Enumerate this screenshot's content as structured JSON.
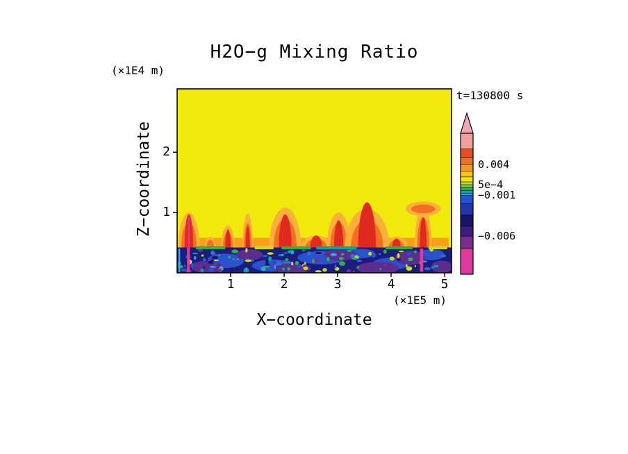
{
  "chart_data": {
    "type": "heatmap",
    "title": "H2O−g Mixing Ratio",
    "time_annotation": "t=130800 s",
    "x_axis": {
      "label": "X−coordinate",
      "units": "(×1E5 m)",
      "ticks": [
        1,
        2,
        3,
        4,
        5
      ],
      "range": [
        0,
        5.13
      ]
    },
    "z_axis": {
      "label": "Z−coordinate",
      "units": "(×1E4 m)",
      "ticks": [
        1,
        2
      ],
      "range": [
        0,
        3.05
      ]
    },
    "colorbar": {
      "orientation": "vertical",
      "over_range_arrow": true,
      "arrow_color": "#F2A8B6",
      "segments": [
        {
          "color": "#F2A09C",
          "span": 0.11
        },
        {
          "color": "#EC4B24",
          "span": 0.06
        },
        {
          "color": "#F3701E",
          "span": 0.05
        },
        {
          "color": "#F8991C",
          "span": 0.05
        },
        {
          "color": "#FDC60E",
          "span": 0.04
        },
        {
          "color": "#F2E90C",
          "span": 0.035
        },
        {
          "color": "#C8DC28",
          "span": 0.02
        },
        {
          "color": "#8CC63F",
          "span": 0.02
        },
        {
          "color": "#2FAE49",
          "span": 0.02
        },
        {
          "color": "#00A99D",
          "span": 0.02
        },
        {
          "color": "#27AAE1",
          "span": 0.015
        },
        {
          "color": "#2A52CC",
          "span": 0.06
        },
        {
          "color": "#2238A8",
          "span": 0.08
        },
        {
          "color": "#1B1464",
          "span": 0.08
        },
        {
          "color": "#3A1D7E",
          "span": 0.07
        },
        {
          "color": "#7B2D8E",
          "span": 0.09
        },
        {
          "color": "#E0399E",
          "span": 0.18
        }
      ],
      "labels": [
        {
          "text": "0.004",
          "pos": 0.22
        },
        {
          "text": "5e−4",
          "pos": 0.365
        },
        {
          "text": "−0.001",
          "pos": 0.44
        },
        {
          "text": "−0.006",
          "pos": 0.73
        }
      ]
    },
    "field": {
      "background_color": "#F2E90C",
      "surface_strip": {
        "x0": 0.05,
        "x1": 5.08,
        "height": 0.16,
        "color": "#F9A01B"
      },
      "plume_colors": {
        "outer": "#FBB03B",
        "mid": "#F3701E",
        "core": "#E02A20"
      },
      "plumes": [
        {
          "cx": 0.22,
          "rx": 0.2,
          "top": 1.0,
          "core": 0.55
        },
        {
          "cx": 0.62,
          "rx": 0.1,
          "top": 0.6,
          "core": 0.0
        },
        {
          "cx": 0.95,
          "rx": 0.13,
          "top": 0.78,
          "core": 0.3
        },
        {
          "cx": 1.32,
          "rx": 0.1,
          "top": 0.98,
          "core": 0.35
        },
        {
          "cx": 2.02,
          "rx": 0.3,
          "top": 1.08,
          "core": 0.55
        },
        {
          "cx": 2.6,
          "rx": 0.28,
          "top": 0.62,
          "core": 0.2
        },
        {
          "cx": 3.02,
          "rx": 0.22,
          "top": 1.0,
          "core": 0.45
        },
        {
          "cx": 3.55,
          "rx": 0.42,
          "top": 1.06,
          "core": 0.75
        },
        {
          "cx": 4.1,
          "rx": 0.2,
          "top": 0.6,
          "core": 0.15
        },
        {
          "cx": 4.6,
          "rx": 0.16,
          "top": 1.12,
          "core": 0.5,
          "cap_rx": 0.33,
          "cap_rz": 0.12
        }
      ],
      "boundary_layer": {
        "top_z": 0.42,
        "color": "#1C1B7E",
        "blue_color": "#2A52CC",
        "purple_color": "#5B2D90",
        "blue_patches": [
          {
            "x": 0.9,
            "z": 0.2,
            "rx": 0.35,
            "rz": 0.12
          },
          {
            "x": 1.8,
            "z": 0.12,
            "rx": 0.4,
            "rz": 0.1
          },
          {
            "x": 2.7,
            "z": 0.25,
            "rx": 0.45,
            "rz": 0.11
          },
          {
            "x": 3.4,
            "z": 0.32,
            "rx": 0.3,
            "rz": 0.08
          },
          {
            "x": 4.0,
            "z": 0.15,
            "rx": 0.35,
            "rz": 0.1
          },
          {
            "x": 4.75,
            "z": 0.3,
            "rx": 0.25,
            "rz": 0.09
          }
        ],
        "purple_patches": [
          {
            "x": 0.55,
            "z": 0.1,
            "rx": 0.3,
            "rz": 0.1
          },
          {
            "x": 1.35,
            "z": 0.3,
            "rx": 0.25,
            "rz": 0.09
          },
          {
            "x": 2.15,
            "z": 0.07,
            "rx": 0.35,
            "rz": 0.08
          },
          {
            "x": 3.05,
            "z": 0.3,
            "rx": 0.3,
            "rz": 0.1
          },
          {
            "x": 3.75,
            "z": 0.08,
            "rx": 0.4,
            "rz": 0.1
          },
          {
            "x": 4.35,
            "z": 0.25,
            "rx": 0.28,
            "rz": 0.12
          },
          {
            "x": 4.95,
            "z": 0.1,
            "rx": 0.2,
            "rz": 0.1
          }
        ],
        "fringe_segments": [
          {
            "x0": 0.35,
            "x1": 0.9,
            "color": "#2FAE49"
          },
          {
            "x0": 1.45,
            "x1": 1.8,
            "color": "#C8DC28"
          },
          {
            "x0": 1.95,
            "x1": 2.5,
            "color": "#2FAE49"
          },
          {
            "x0": 2.6,
            "x1": 3.35,
            "color": "#00A99D"
          },
          {
            "x0": 3.9,
            "x1": 4.4,
            "color": "#2FAE49"
          },
          {
            "x0": 4.7,
            "x1": 5.05,
            "color": "#C8DC28"
          }
        ],
        "speckles": {
          "seed": 11,
          "count": 120,
          "colors": [
            "#2FAE49",
            "#27AAE1",
            "#00A99D",
            "#C8DC28",
            "#2A52CC",
            "#2E6FE0",
            "#7B2D8E",
            "#1B1464"
          ]
        }
      },
      "streaks": [
        {
          "x": 0.21,
          "w": 0.05,
          "z0": 0.0,
          "z1": 0.42,
          "color": "#E0399E"
        },
        {
          "x": 0.22,
          "w": 0.025,
          "z0": 0.42,
          "z1": 0.92,
          "color": "#E0399E"
        },
        {
          "x": 4.57,
          "w": 0.06,
          "z0": 0.02,
          "z1": 0.4,
          "color": "#E0399E"
        },
        {
          "x": 0.04,
          "w": 0.035,
          "z0": 0.0,
          "z1": 0.4,
          "color": "#27AAE1"
        }
      ]
    }
  }
}
